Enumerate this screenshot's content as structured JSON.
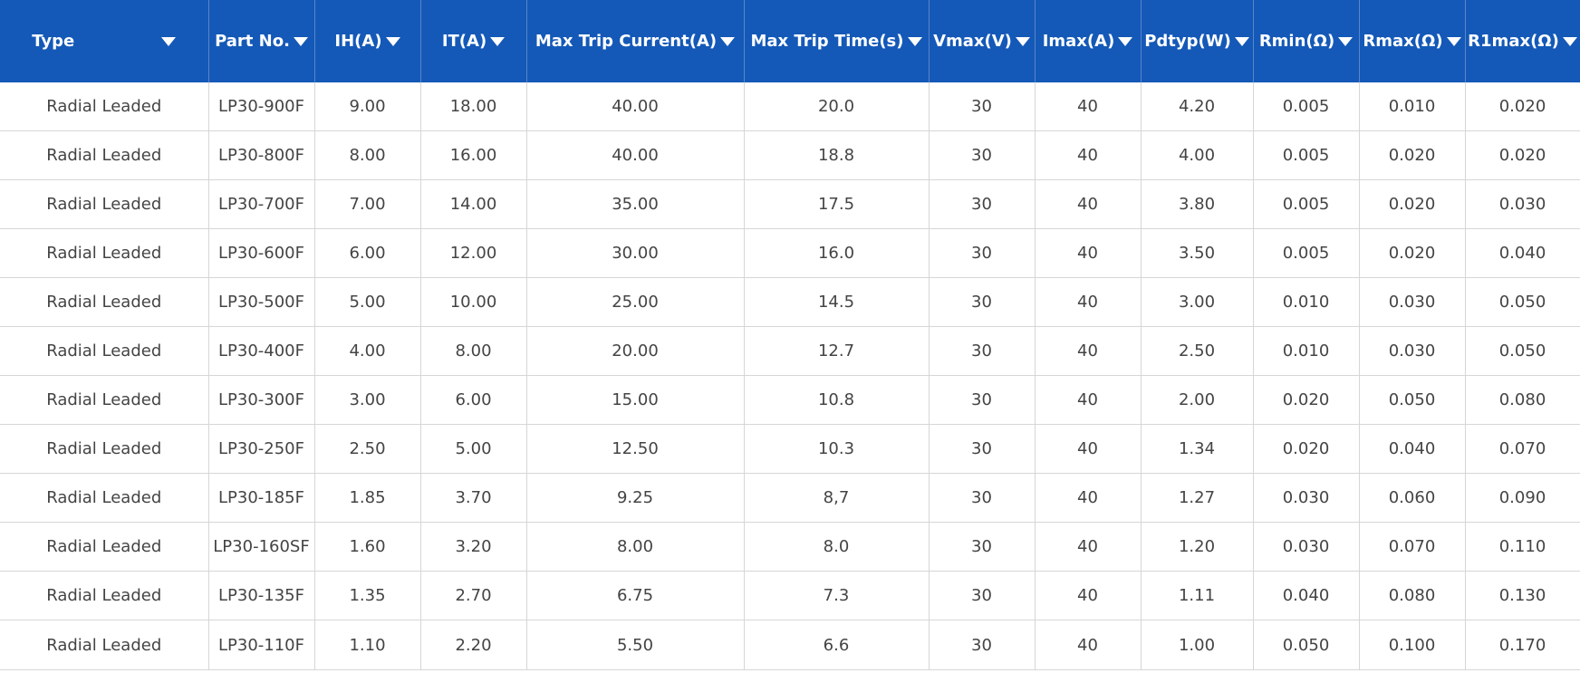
{
  "table": {
    "columns": [
      {
        "label": "Type",
        "icon": "caret-down-icon"
      },
      {
        "label": "Part No.",
        "icon": "caret-down-icon"
      },
      {
        "label": "IH(A)",
        "icon": "caret-down-icon"
      },
      {
        "label": "IT(A)",
        "icon": "caret-down-icon"
      },
      {
        "label": "Max Trip Current(A)",
        "icon": "caret-down-icon"
      },
      {
        "label": "Max Trip Time(s)",
        "icon": "caret-down-icon"
      },
      {
        "label": "Vmax(V)",
        "icon": "caret-down-icon"
      },
      {
        "label": "Imax(A)",
        "icon": "caret-down-icon"
      },
      {
        "label": "Pdtyp(W)",
        "icon": "caret-down-icon"
      },
      {
        "label": "Rmin(Ω)",
        "icon": "caret-down-icon"
      },
      {
        "label": "Rmax(Ω)",
        "icon": "caret-down-icon"
      },
      {
        "label": "R1max(Ω)",
        "icon": "caret-down-icon"
      }
    ],
    "rows": [
      [
        "Radial Leaded",
        "LP30-900F",
        "9.00",
        "18.00",
        "40.00",
        "20.0",
        "30",
        "40",
        "4.20",
        "0.005",
        "0.010",
        "0.020"
      ],
      [
        "Radial Leaded",
        "LP30-800F",
        "8.00",
        "16.00",
        "40.00",
        "18.8",
        "30",
        "40",
        "4.00",
        "0.005",
        "0.020",
        "0.020"
      ],
      [
        "Radial Leaded",
        "LP30-700F",
        "7.00",
        "14.00",
        "35.00",
        "17.5",
        "30",
        "40",
        "3.80",
        "0.005",
        "0.020",
        "0.030"
      ],
      [
        "Radial Leaded",
        "LP30-600F",
        "6.00",
        "12.00",
        "30.00",
        "16.0",
        "30",
        "40",
        "3.50",
        "0.005",
        "0.020",
        "0.040"
      ],
      [
        "Radial Leaded",
        "LP30-500F",
        "5.00",
        "10.00",
        "25.00",
        "14.5",
        "30",
        "40",
        "3.00",
        "0.010",
        "0.030",
        "0.050"
      ],
      [
        "Radial Leaded",
        "LP30-400F",
        "4.00",
        "8.00",
        "20.00",
        "12.7",
        "30",
        "40",
        "2.50",
        "0.010",
        "0.030",
        "0.050"
      ],
      [
        "Radial Leaded",
        "LP30-300F",
        "3.00",
        "6.00",
        "15.00",
        "10.8",
        "30",
        "40",
        "2.00",
        "0.020",
        "0.050",
        "0.080"
      ],
      [
        "Radial Leaded",
        "LP30-250F",
        "2.50",
        "5.00",
        "12.50",
        "10.3",
        "30",
        "40",
        "1.34",
        "0.020",
        "0.040",
        "0.070"
      ],
      [
        "Radial Leaded",
        "LP30-185F",
        "1.85",
        "3.70",
        "9.25",
        "8,7",
        "30",
        "40",
        "1.27",
        "0.030",
        "0.060",
        "0.090"
      ],
      [
        "Radial Leaded",
        "LP30-160SF",
        "1.60",
        "3.20",
        "8.00",
        "8.0",
        "30",
        "40",
        "1.20",
        "0.030",
        "0.070",
        "0.110"
      ],
      [
        "Radial Leaded",
        "LP30-135F",
        "1.35",
        "2.70",
        "6.75",
        "7.3",
        "30",
        "40",
        "1.11",
        "0.040",
        "0.080",
        "0.130"
      ],
      [
        "Radial Leaded",
        "LP30-110F",
        "1.10",
        "2.20",
        "5.50",
        "6.6",
        "30",
        "40",
        "1.00",
        "0.050",
        "0.100",
        "0.170"
      ]
    ]
  },
  "colors": {
    "header_bg": "#1459b8",
    "header_text": "#ffffff",
    "cell_text": "#444444",
    "grid_line": "#d6d6d6"
  }
}
